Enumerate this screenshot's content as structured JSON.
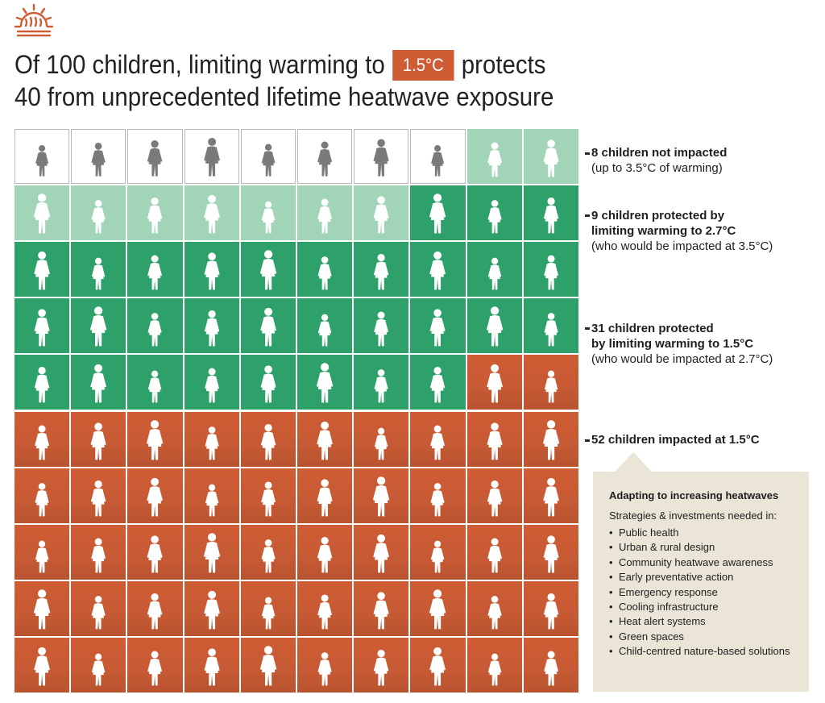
{
  "title": {
    "line1_before": "Of 100 children, limiting warming to",
    "badge": "1.5°C",
    "line1_after": "protects",
    "line2": "40 from unprecedented lifetime heatwave exposure"
  },
  "colors": {
    "not_impacted": "#ffffff",
    "protected_2_7": "#a2d4b8",
    "protected_1_5": "#2ea06a",
    "impacted": "#cf5c34",
    "accent": "#cf5c34"
  },
  "grid": {
    "rows": 10,
    "cols": 10,
    "order": "row-major",
    "total_children": 100,
    "groups": [
      {
        "key": "not_impacted",
        "count": 8
      },
      {
        "key": "protected_2_7",
        "count": 9
      },
      {
        "key": "protected_1_5",
        "count": 31
      },
      {
        "key": "impacted",
        "count": 52
      }
    ],
    "cell_icon": "child-silhouette-icon"
  },
  "labels": [
    {
      "bold": "8 children not impacted",
      "lines": [
        "(up to 3.5°C of warming)"
      ]
    },
    {
      "bold": "9 children protected by limiting warming to 2.7°C",
      "bold_lines": [
        "9 children protected by",
        "limiting warming to 2.7°C"
      ],
      "lines": [
        "(who would be impacted at 3.5°C)"
      ]
    },
    {
      "bold_lines": [
        "31 children protected",
        "by limiting warming to 1.5°C"
      ],
      "lines": [
        "(who would be impacted at 2.7°C)"
      ]
    },
    {
      "bold_lines": [
        "52 children impacted at 1.5°C"
      ],
      "lines": []
    }
  ],
  "info_box": {
    "title": "Adapting to increasing heatwaves",
    "subtitle": "Strategies & investments needed in:",
    "items": [
      "Public health",
      "Urban & rural design",
      "Community heatwave awareness",
      "Early preventative action",
      "Emergency response",
      "Cooling infrastructure",
      "Heat alert systems",
      "Green spaces",
      "Child-centred nature-based solutions"
    ]
  },
  "logo_icon": "sun-heat-icon"
}
